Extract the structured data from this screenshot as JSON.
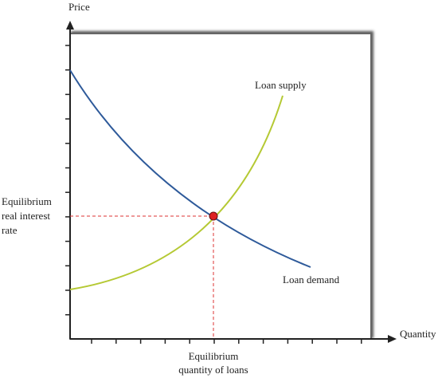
{
  "axes": {
    "y_label": "Price",
    "x_label": "Quantity"
  },
  "curves": {
    "supply_label": "Loan supply",
    "demand_label": "Loan demand"
  },
  "equilibrium": {
    "rate_label": [
      "Equilibrium",
      "real interest",
      "rate"
    ],
    "quantity_label": [
      "Equilibrium",
      "quantity of loans"
    ]
  }
}
